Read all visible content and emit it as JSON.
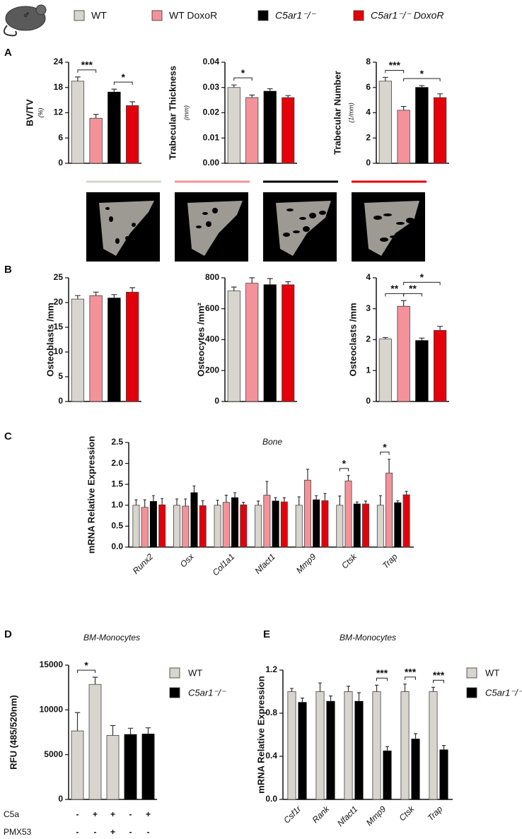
{
  "legend": [
    {
      "name": "WT",
      "color": "#d8d5ce"
    },
    {
      "name": "WT DoxoR",
      "color": "#f4929a"
    },
    {
      "name": "C5ar1⁻/⁻",
      "color": "#000000"
    },
    {
      "name": "C5ar1⁻/⁻ DoxoR",
      "color": "#e3000b"
    }
  ],
  "panel_labels": [
    "A",
    "B",
    "C",
    "D",
    "E"
  ],
  "chart_data": [
    {
      "type": "bar",
      "ylabel": "BV/TV",
      "yunit": "(%)",
      "values": [
        19.5,
        10.7,
        16.9,
        13.7
      ],
      "errors": [
        1.0,
        0.9,
        0.7,
        0.9
      ],
      "ylim": [
        0,
        24
      ],
      "yticks": [
        0,
        6,
        12,
        18,
        24
      ],
      "significance": [
        {
          "from": 0,
          "to": 1,
          "label": "***"
        },
        {
          "from": 2,
          "to": 3,
          "label": "*"
        }
      ]
    },
    {
      "type": "bar",
      "ylabel": "Trabecular Thickness",
      "yunit": "(mm)",
      "values": [
        0.03,
        0.026,
        0.0285,
        0.026
      ],
      "errors": [
        0.001,
        0.001,
        0.001,
        0.0008
      ],
      "ylim": [
        0,
        0.04
      ],
      "yticks": [
        {
          "value": 0,
          "label": "0.00"
        },
        0.01,
        0.02,
        0.03,
        0.04
      ],
      "significance": [
        {
          "from": 0,
          "to": 1,
          "label": "*"
        }
      ]
    },
    {
      "type": "bar",
      "ylabel": "Trabecular Number",
      "yunit": "(1/mm)",
      "values": [
        6.5,
        4.2,
        6.0,
        5.2
      ],
      "errors": [
        0.3,
        0.3,
        0.15,
        0.3
      ],
      "ylim": [
        0,
        8
      ],
      "yticks": [
        0,
        2,
        4,
        6,
        8
      ],
      "significance": [
        {
          "from": 0,
          "to": 1,
          "label": "***"
        },
        {
          "from": 1,
          "to": 3,
          "label": "*"
        }
      ]
    },
    {
      "type": "bar",
      "ylabel": "Osteoblasts /mm",
      "values": [
        20.7,
        21.4,
        20.9,
        22.1
      ],
      "errors": [
        0.7,
        0.7,
        0.7,
        0.9
      ],
      "ylim": [
        0,
        25
      ],
      "yticks": [
        0,
        5,
        10,
        15,
        20,
        25
      ],
      "significance": []
    },
    {
      "type": "bar",
      "ylabel": "Osteocytes /mm²",
      "values": [
        715,
        765,
        755,
        755
      ],
      "errors": [
        25,
        35,
        40,
        20
      ],
      "ylim": [
        0,
        800
      ],
      "yticks": [
        0,
        200,
        400,
        600,
        800
      ],
      "significance": []
    },
    {
      "type": "bar",
      "ylabel": "Osteoclasts /mm",
      "values": [
        2.02,
        3.08,
        1.97,
        2.3
      ],
      "errors": [
        0.05,
        0.18,
        0.08,
        0.13
      ],
      "ylim": [
        0,
        4
      ],
      "yticks": [
        0,
        1,
        2,
        3,
        4
      ],
      "significance": [
        {
          "from": 0,
          "to": 1,
          "label": "**"
        },
        {
          "from": 1,
          "to": 2,
          "label": "**"
        },
        {
          "from": 1,
          "to": 3,
          "label": "*"
        }
      ]
    },
    {
      "type": "bar",
      "title": "Bone",
      "ylabel": "mRNA Relative Expression",
      "categories": [
        "Runx2",
        "Osx",
        "Col1a1",
        "Nfact1",
        "Mmp9",
        "Ctsk",
        "Trap"
      ],
      "series": [
        {
          "values": [
            1,
            1,
            1,
            1,
            1,
            1,
            1
          ],
          "errors": [
            0.13,
            0.15,
            0.12,
            0.1,
            0.2,
            0.22,
            0.23
          ]
        },
        {
          "values": [
            0.95,
            0.98,
            1.07,
            1.24,
            1.6,
            1.58,
            1.77
          ],
          "errors": [
            0.18,
            0.17,
            0.17,
            0.33,
            0.26,
            0.13,
            0.33
          ]
        },
        {
          "values": [
            1.09,
            1.3,
            1.18,
            1.1,
            1.13,
            1.03,
            1.06
          ],
          "errors": [
            0.14,
            0.16,
            0.12,
            0.08,
            0.1,
            0.05,
            0.05
          ]
        },
        {
          "values": [
            1.01,
            0.99,
            1.01,
            1.08,
            1.11,
            1.03,
            1.25
          ],
          "errors": [
            0.15,
            0.12,
            0.06,
            0.1,
            0.17,
            0.07,
            0.08
          ]
        }
      ],
      "ylim": [
        0,
        2.5
      ],
      "yticks": [
        {
          "value": 0,
          "label": "0.0"
        },
        0.5,
        {
          "value": 1,
          "label": "1.0"
        },
        1.5,
        {
          "value": 2,
          "label": "2.0"
        },
        2.5
      ],
      "significance": [
        {
          "category": 5,
          "from": 0,
          "to": 1,
          "label": "*"
        },
        {
          "category": 6,
          "from": 0,
          "to": 1,
          "label": "*"
        }
      ]
    },
    {
      "type": "bar",
      "title": "BM-Monocytes",
      "ylabel": "RFU (485/520nm)",
      "values": [
        7650,
        12850,
        7150,
        7250,
        7300
      ],
      "errors": [
        2050,
        800,
        1100,
        700,
        700
      ],
      "colors": [
        "#d8d5ce",
        "#d8d5ce",
        "#d8d5ce",
        "#000000",
        "#000000"
      ],
      "legend": [
        {
          "name": "WT",
          "color": "#d8d5ce"
        },
        {
          "name": "C5ar1⁻/⁻",
          "color": "#000000"
        }
      ],
      "conditions": [
        {
          "label": "C5a",
          "values": [
            "-",
            "+",
            "+",
            "-",
            "+"
          ]
        },
        {
          "label": "PMX53",
          "values": [
            "-",
            "-",
            "+",
            "-",
            "-"
          ]
        }
      ],
      "ylim": [
        0,
        15000
      ],
      "yticks": [
        0,
        5000,
        10000,
        15000
      ],
      "significance": [
        {
          "from": 0,
          "to": 1,
          "label": "*"
        }
      ]
    },
    {
      "type": "bar",
      "title": "BM-Monocytes",
      "ylabel": "mRNA Relative Expression",
      "categories": [
        "Csf1r",
        "Rank",
        "Nfact1",
        "Mmp9",
        "Ctsk",
        "Trap"
      ],
      "series": [
        {
          "name": "WT",
          "color": "#d8d5ce",
          "values": [
            1,
            1,
            1,
            1,
            1,
            1
          ],
          "errors": [
            0.03,
            0.08,
            0.05,
            0.06,
            0.07,
            0.04
          ]
        },
        {
          "name": "C5ar1⁻/⁻",
          "color": "#000000",
          "values": [
            0.9,
            0.91,
            0.91,
            0.45,
            0.56,
            0.46
          ],
          "errors": [
            0.04,
            0.05,
            0.08,
            0.04,
            0.05,
            0.04
          ]
        }
      ],
      "ylim": [
        0,
        1.2
      ],
      "yticks": [
        {
          "value": 0,
          "label": "0.0"
        },
        0.4,
        0.8,
        1.2
      ],
      "significance": [
        {
          "category": 3,
          "from": 0,
          "to": 1,
          "label": "***"
        },
        {
          "category": 4,
          "from": 0,
          "to": 1,
          "label": "***"
        },
        {
          "category": 5,
          "from": 0,
          "to": 1,
          "label": "***"
        }
      ]
    }
  ]
}
